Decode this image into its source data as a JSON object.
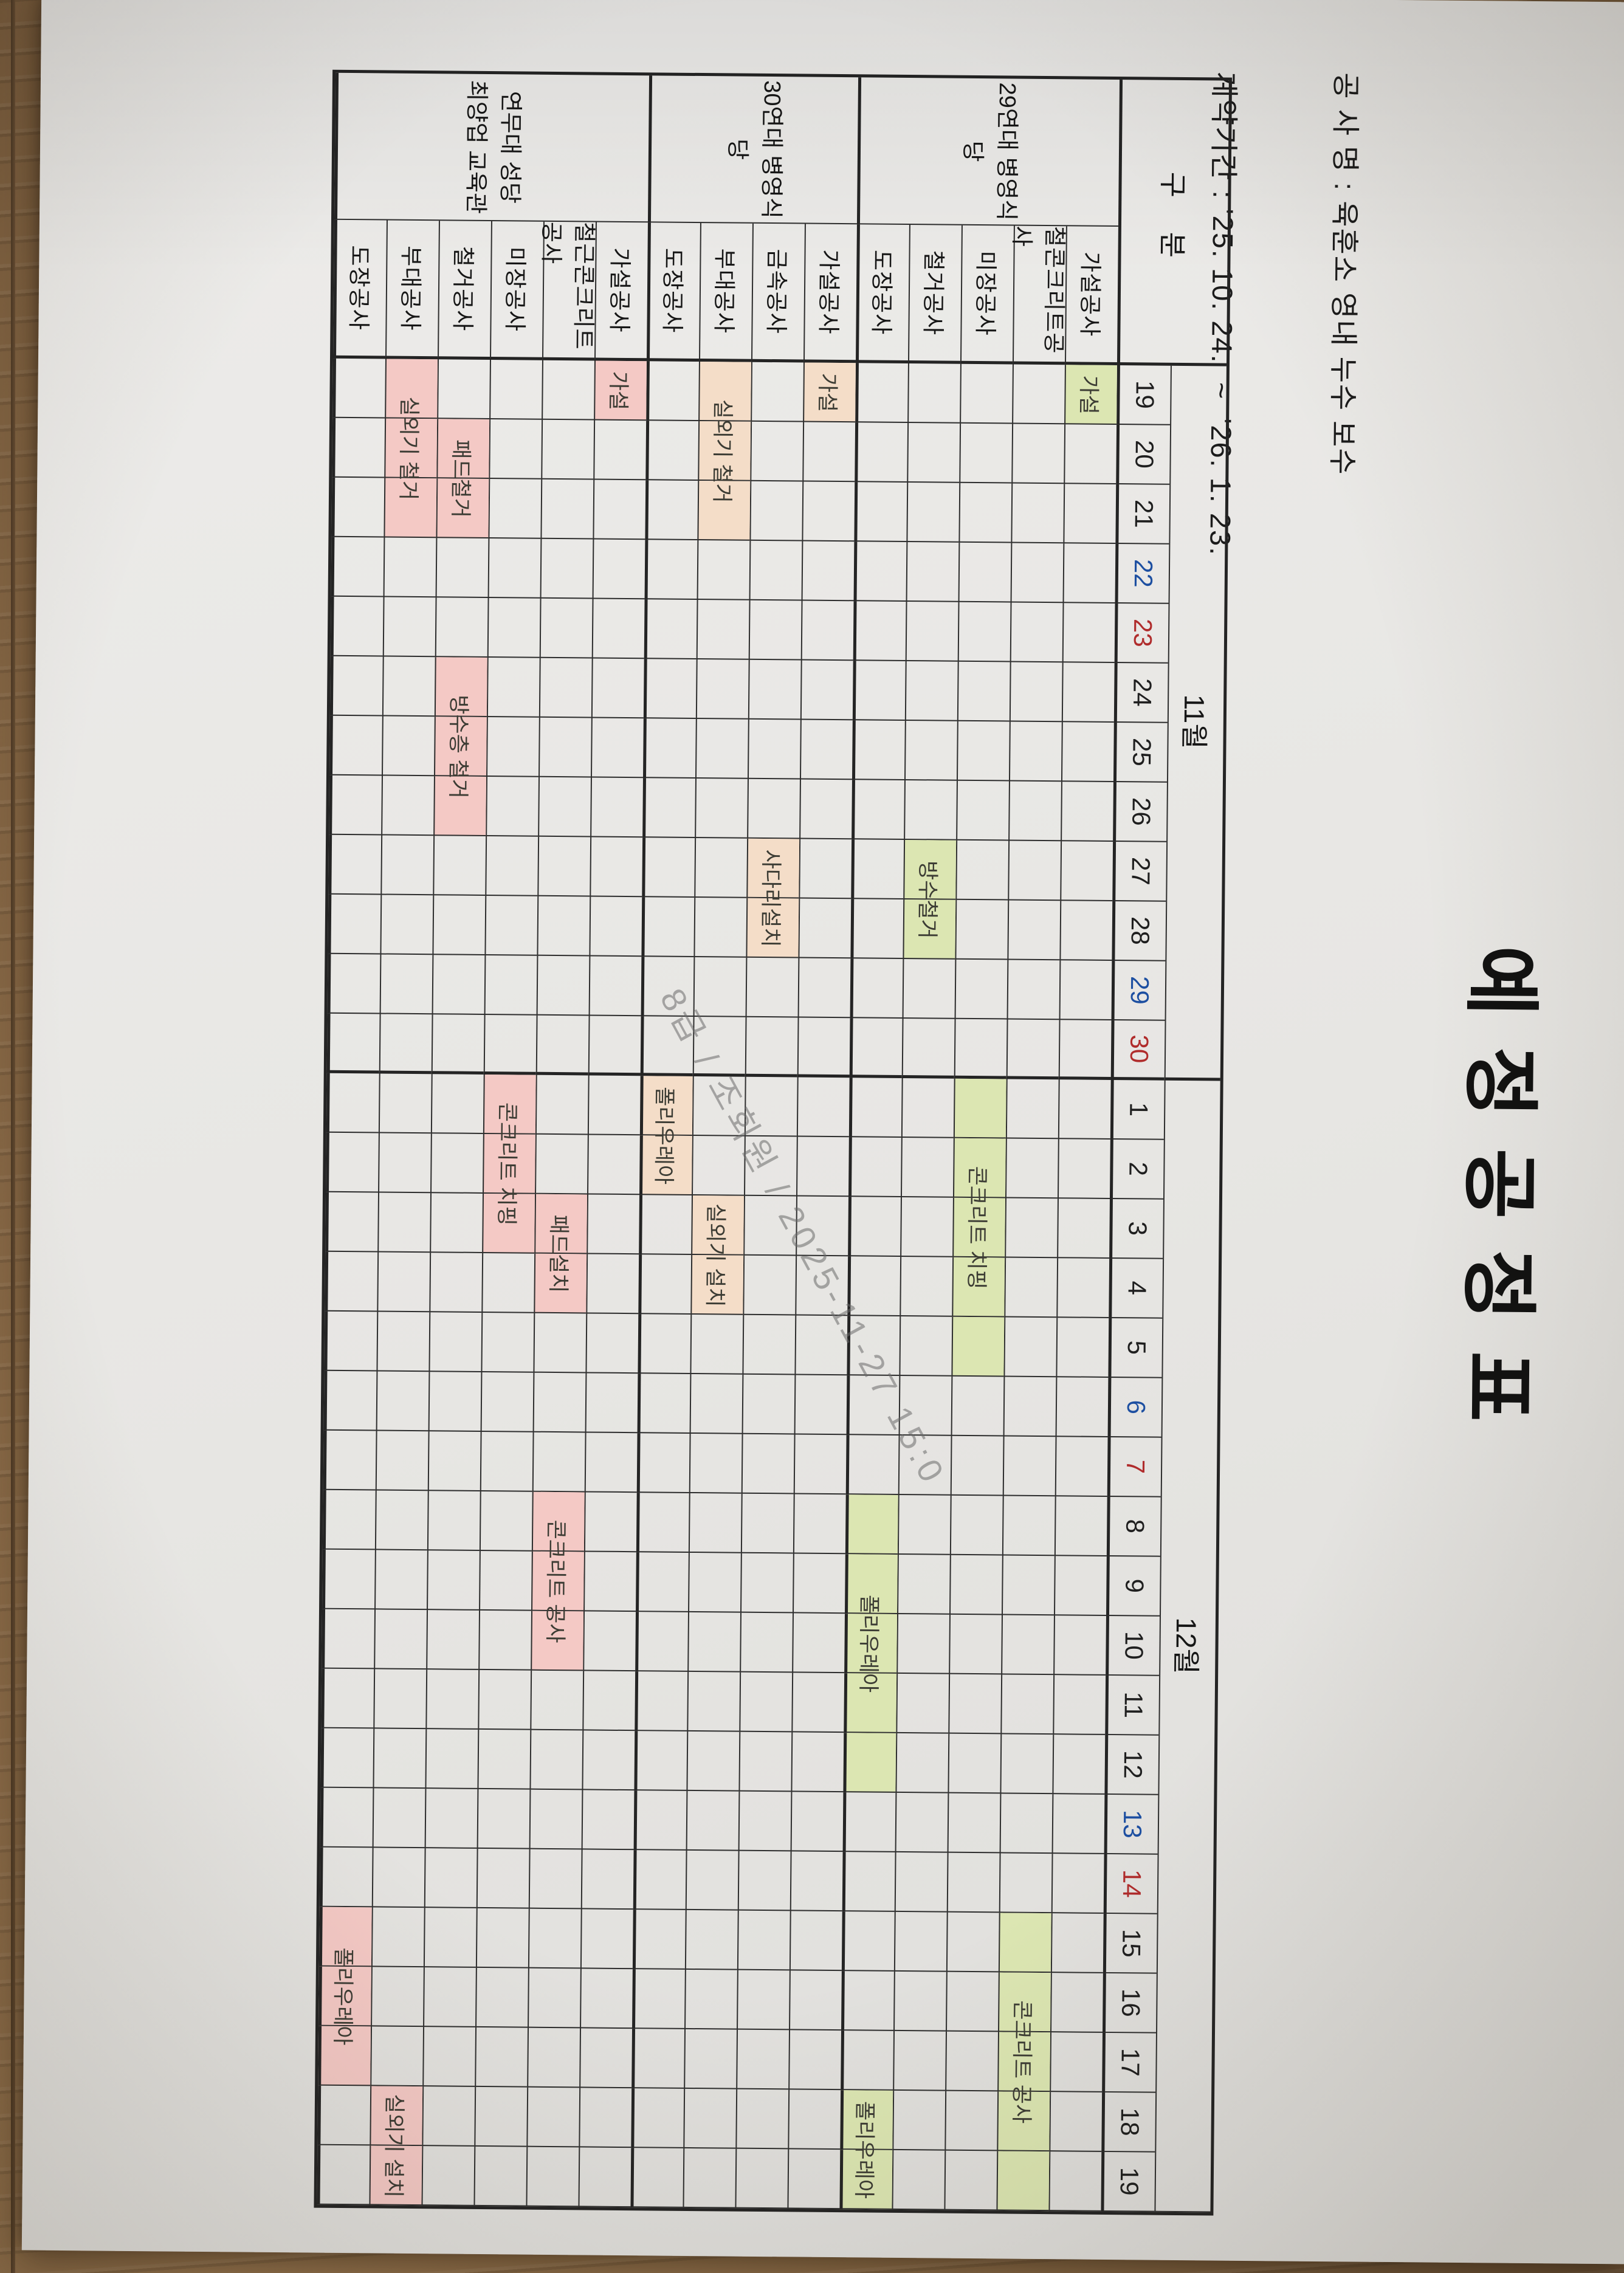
{
  "header": {
    "project": "공 사 명 : 육훈소 영내 누수 보수",
    "period": "계약기간 : '25. 10. 24.  ~  '26. 1. 23.",
    "title": "예 정 공 정 표"
  },
  "watermark": "8급 / 조회원 / 2025-11-27 15:0",
  "table": {
    "corner": "구 분",
    "months": [
      {
        "label": "11월",
        "days": 12
      },
      {
        "label": "12월",
        "days": 19
      }
    ],
    "days": [
      {
        "n": 19,
        "w": ""
      },
      {
        "n": 20,
        "w": ""
      },
      {
        "n": 21,
        "w": ""
      },
      {
        "n": 22,
        "w": "sat"
      },
      {
        "n": 23,
        "w": "sun"
      },
      {
        "n": 24,
        "w": ""
      },
      {
        "n": 25,
        "w": ""
      },
      {
        "n": 26,
        "w": ""
      },
      {
        "n": 27,
        "w": ""
      },
      {
        "n": 28,
        "w": ""
      },
      {
        "n": 29,
        "w": "sat"
      },
      {
        "n": 30,
        "w": "sun"
      },
      {
        "n": 1,
        "w": ""
      },
      {
        "n": 2,
        "w": ""
      },
      {
        "n": 3,
        "w": ""
      },
      {
        "n": 4,
        "w": ""
      },
      {
        "n": 5,
        "w": ""
      },
      {
        "n": 6,
        "w": "sat"
      },
      {
        "n": 7,
        "w": "sun"
      },
      {
        "n": 8,
        "w": ""
      },
      {
        "n": 9,
        "w": ""
      },
      {
        "n": 10,
        "w": ""
      },
      {
        "n": 11,
        "w": ""
      },
      {
        "n": 12,
        "w": ""
      },
      {
        "n": 13,
        "w": "sat"
      },
      {
        "n": 14,
        "w": "sun"
      },
      {
        "n": 15,
        "w": ""
      },
      {
        "n": 16,
        "w": ""
      },
      {
        "n": 17,
        "w": ""
      },
      {
        "n": 18,
        "w": ""
      },
      {
        "n": 19,
        "w": ""
      }
    ],
    "groups": [
      {
        "name_lines": [
          "29연대 병영식당"
        ],
        "color": "#dce6b2",
        "rows": [
          {
            "label": "가설공사",
            "bars": [
              {
                "label": "가설",
                "start": 0,
                "days": 1
              }
            ]
          },
          {
            "label": "철콘크리트공사",
            "bars": [
              {
                "label": "콘크리트 공사",
                "start": 26,
                "days": 5
              }
            ]
          },
          {
            "label": "미장공사",
            "bars": [
              {
                "label": "콘크리트 치핑",
                "start": 12,
                "days": 5
              }
            ]
          },
          {
            "label": "철거공사",
            "bars": [
              {
                "label": "방수철거",
                "start": 8,
                "days": 2
              }
            ]
          },
          {
            "label": "도장공사",
            "bars": [
              {
                "label": "폴리우레아",
                "start": 19,
                "days": 5
              },
              {
                "label": "폴리우레아",
                "start": 29,
                "days": 2
              }
            ]
          }
        ]
      },
      {
        "name_lines": [
          "30연대 병영식당"
        ],
        "color": "#f4ddc8",
        "rows": [
          {
            "label": "가설공사",
            "bars": [
              {
                "label": "가설",
                "start": 0,
                "days": 1
              }
            ]
          },
          {
            "label": "금속공사",
            "bars": [
              {
                "label": "사다리설치",
                "start": 8,
                "days": 2
              }
            ]
          },
          {
            "label": "부대공사",
            "bars": [
              {
                "label": "실외기 철거",
                "start": 0,
                "days": 3
              },
              {
                "label": "실외기 설치",
                "start": 14,
                "days": 2
              }
            ]
          },
          {
            "label": "도장공사",
            "bars": [
              {
                "label": "폴리우레아",
                "start": 12,
                "days": 2
              }
            ]
          }
        ]
      },
      {
        "name_lines": [
          "연무대 성당",
          "최양업 교육관"
        ],
        "color": "#f4c9c5",
        "rows": [
          {
            "label": "가설공사",
            "bars": [
              {
                "label": "가설",
                "start": 0,
                "days": 1
              }
            ]
          },
          {
            "label": "철근콘크리트공사",
            "bars": [
              {
                "label": "패드설치",
                "start": 14,
                "days": 2
              },
              {
                "label": "콘크리트 공사",
                "start": 19,
                "days": 3
              }
            ]
          },
          {
            "label": "미장공사",
            "bars": [
              {
                "label": "콘크리트 치핑",
                "start": 12,
                "days": 3
              }
            ]
          },
          {
            "label": "철거공사",
            "bars": [
              {
                "label": "패드철거",
                "start": 1,
                "days": 2
              },
              {
                "label": "방수층 철거",
                "start": 5,
                "days": 3
              }
            ]
          },
          {
            "label": "부대공사",
            "bars": [
              {
                "label": "실외기 철거",
                "start": 0,
                "days": 3
              },
              {
                "label": "실외기 설치",
                "start": 29,
                "days": 2
              }
            ]
          },
          {
            "label": "도장공사",
            "bars": [
              {
                "label": "폴리우레아",
                "start": 26,
                "days": 3
              }
            ]
          }
        ]
      }
    ]
  }
}
